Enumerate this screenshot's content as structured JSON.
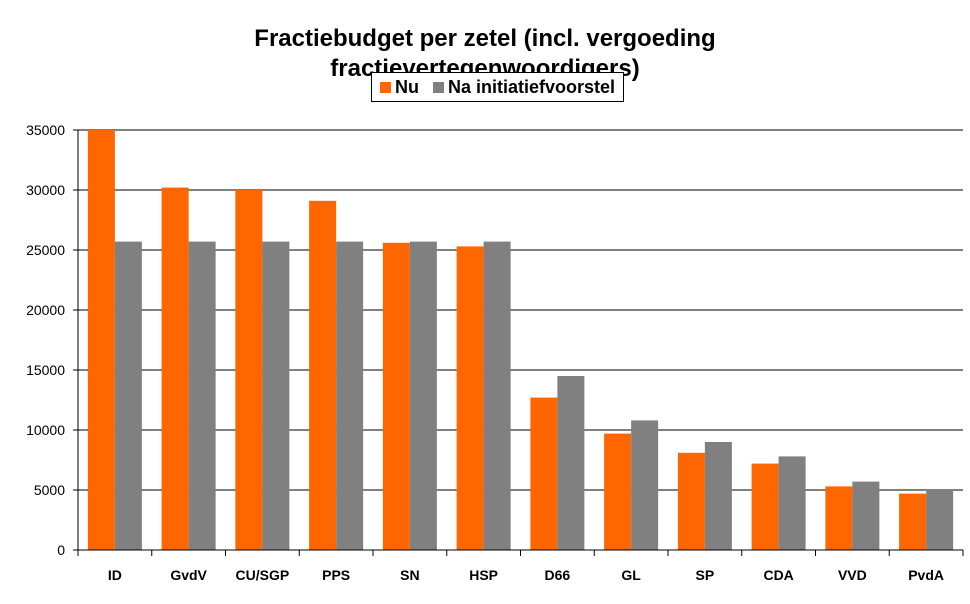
{
  "chart_data": {
    "type": "bar",
    "title_lines": [
      "Fractiebudget per zetel (incl. vergoeding",
      "fractievertegenwoordigers)"
    ],
    "categories": [
      "ID",
      "GvdV",
      "CU/SGP",
      "PPS",
      "SN",
      "HSP",
      "D66",
      "GL",
      "SP",
      "CDA",
      "VVD",
      "PvdA"
    ],
    "series": [
      {
        "name": "Nu",
        "color": "#ff6600",
        "values": [
          35000,
          30200,
          30000,
          29100,
          25600,
          25300,
          12700,
          9700,
          8100,
          7200,
          5300,
          4700
        ]
      },
      {
        "name": "Na initiatiefvoorstel",
        "color": "#808080",
        "values": [
          25700,
          25700,
          25700,
          25700,
          25700,
          25700,
          14500,
          10800,
          9000,
          7800,
          5700,
          5000
        ]
      }
    ],
    "yticks": [
      "0",
      "5000",
      "10000",
      "15000",
      "20000",
      "25000",
      "30000",
      "35000"
    ],
    "ylim": [
      0,
      35000
    ],
    "grid": true,
    "legend_position": "top-center"
  }
}
